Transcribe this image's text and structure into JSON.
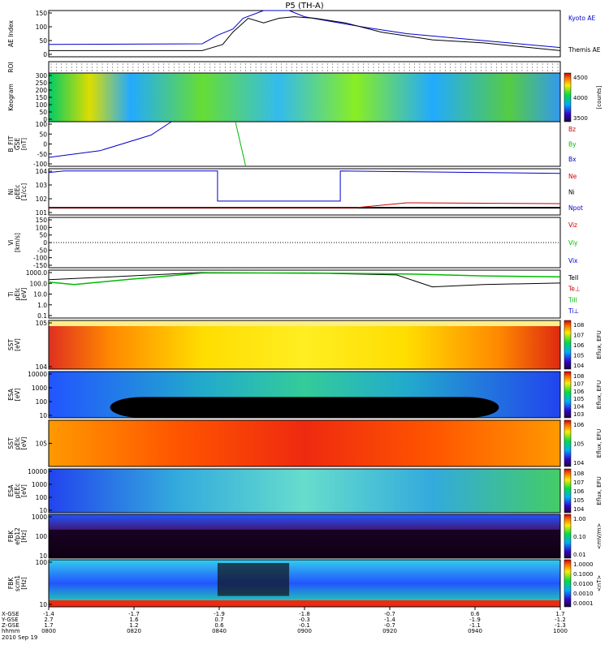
{
  "title": "P5 (TH-A)",
  "colors": {
    "axis": "#000000",
    "red": "#cc0000",
    "green": "#00bb00",
    "blue": "#0000cc",
    "kyoto_ae": "#0000cc"
  },
  "chart_data": [
    {
      "type": "line",
      "id": "ae",
      "ylabel": "AE Index",
      "yticks": [
        "150",
        "100",
        "50",
        "0"
      ],
      "ylim": [
        0,
        150
      ],
      "x": [
        "0800",
        "0820",
        "0840",
        "0900",
        "0920",
        "0940",
        "1000"
      ],
      "series": [
        {
          "name": "Kyoto AE",
          "color": "#0000cc",
          "points": [
            [
              0,
              40
            ],
            [
              0.3,
              42
            ],
            [
              0.33,
              70
            ],
            [
              0.36,
              90
            ],
            [
              0.38,
              125
            ],
            [
              0.42,
              150
            ],
            [
              0.47,
              150
            ],
            [
              0.5,
              130
            ],
            [
              0.55,
              115
            ],
            [
              0.62,
              95
            ],
            [
              0.7,
              75
            ],
            [
              0.8,
              60
            ],
            [
              0.9,
              45
            ],
            [
              1,
              30
            ]
          ]
        },
        {
          "name": "Themis AE",
          "color": "#000000",
          "points": [
            [
              0,
              20
            ],
            [
              0.3,
              20
            ],
            [
              0.34,
              40
            ],
            [
              0.36,
              80
            ],
            [
              0.39,
              125
            ],
            [
              0.42,
              110
            ],
            [
              0.45,
              125
            ],
            [
              0.48,
              130
            ],
            [
              0.52,
              125
            ],
            [
              0.58,
              110
            ],
            [
              0.65,
              80
            ],
            [
              0.75,
              55
            ],
            [
              0.85,
              45
            ],
            [
              1,
              20
            ]
          ]
        }
      ]
    },
    {
      "type": "scatter",
      "id": "roi",
      "ylabel": "ROI"
    },
    {
      "type": "heatmap",
      "id": "keogram",
      "ylabel": "Keogram",
      "yticks": [
        "300",
        "250",
        "200",
        "150",
        "100",
        "50",
        "0"
      ],
      "colorbar": {
        "ticks": [
          "4500",
          "4000",
          "3500"
        ],
        "label": "[counts]"
      }
    },
    {
      "type": "line",
      "id": "bfit",
      "ylabel": "B_FIT",
      "ylabel2": "GSE",
      "ylabel3": "[nT]",
      "yticks": [
        "100",
        "50",
        "0",
        "-50",
        "-100"
      ],
      "ylim": [
        -100,
        100
      ],
      "series": [
        {
          "name": "Bz",
          "color": "#cc0000",
          "points": []
        },
        {
          "name": "By",
          "color": "#00bb00",
          "points": [
            [
              0.365,
              100
            ],
            [
              0.385,
              -100
            ]
          ]
        },
        {
          "name": "Bx",
          "color": "#0000cc",
          "points": [
            [
              0,
              -60
            ],
            [
              0.1,
              -30
            ],
            [
              0.2,
              40
            ],
            [
              0.24,
              100
            ]
          ]
        }
      ]
    },
    {
      "type": "line",
      "id": "ni",
      "ylabel": "Ni",
      "ylabel2": "pEEc",
      "ylabel3": "[1/cc]",
      "yticks": [
        "10^4",
        "10^3",
        "10^2",
        "10^1"
      ],
      "series": [
        {
          "name": "Ne",
          "color": "#cc0000"
        },
        {
          "name": "Ni",
          "color": "#000000"
        },
        {
          "name": "Npot",
          "color": "#0000cc"
        }
      ]
    },
    {
      "type": "line",
      "id": "vi",
      "ylabel": "Vi",
      "ylabel2": "[km/s]",
      "yticks": [
        "150",
        "100",
        "50",
        "0",
        "-50",
        "-100",
        "-150"
      ],
      "ylim": [
        -150,
        150
      ],
      "series": [
        {
          "name": "Viz",
          "color": "#cc0000"
        },
        {
          "name": "Viy",
          "color": "#00bb00"
        },
        {
          "name": "Vix",
          "color": "#0000cc"
        }
      ]
    },
    {
      "type": "line",
      "id": "ti",
      "ylabel": "Ti",
      "ylabel2": "pEIc",
      "ylabel3": "[eV]",
      "yticks": [
        "1000.0",
        "100.0",
        "10.0",
        "1.0",
        "0.1"
      ],
      "series": [
        {
          "name": "TeII",
          "color": "#000000"
        },
        {
          "name": "Te⊥",
          "color": "#cc0000"
        },
        {
          "name": "TiII",
          "color": "#00bb00"
        },
        {
          "name": "Ti⊥",
          "color": "#0000cc"
        }
      ]
    },
    {
      "type": "heatmap",
      "id": "sst1",
      "ylabel": "SST",
      "ylabel2": "[eV]",
      "yticks": [
        "10^5",
        "10^4"
      ],
      "colorbar": {
        "ticks": [
          "10^8",
          "10^7",
          "10^6",
          "10^5",
          "10^4"
        ],
        "label": "Eflux, EFU"
      }
    },
    {
      "type": "heatmap",
      "id": "esa1",
      "ylabel": "ESA",
      "ylabel2": "[eV]",
      "yticks": [
        "10000",
        "1000",
        "100",
        "10"
      ],
      "colorbar": {
        "ticks": [
          "10^8",
          "10^7",
          "10^6",
          "10^5",
          "10^4",
          "10^3"
        ],
        "label": "Eflux, EFU"
      }
    },
    {
      "type": "heatmap",
      "id": "sst2",
      "ylabel": "SST",
      "ylabel2": "pEIc",
      "ylabel3": "[eV]",
      "yticks": [
        "10^5"
      ],
      "colorbar": {
        "ticks": [
          "10^6",
          "10^5",
          "10^4"
        ],
        "label": "Eflux, EFU"
      }
    },
    {
      "type": "heatmap",
      "id": "esa2",
      "ylabel": "ESA",
      "ylabel2": "pEEc",
      "ylabel3": "[eV]",
      "yticks": [
        "10000",
        "1000",
        "100",
        "10"
      ],
      "colorbar": {
        "ticks": [
          "10^8",
          "10^7",
          "10^6",
          "10^5",
          "10^4"
        ],
        "label": "Eflux, EFU"
      }
    },
    {
      "type": "heatmap",
      "id": "fbk1",
      "ylabel": "FBK",
      "ylabel2": "efp12",
      "ylabel3": "[Hz]",
      "yticks": [
        "1000",
        "100",
        "10"
      ],
      "colorbar": {
        "ticks": [
          "1.00",
          "0.10",
          "0.01"
        ],
        "label": "<mV/m>"
      }
    },
    {
      "type": "heatmap",
      "id": "fbk2",
      "ylabel": "FBK",
      "ylabel2": "scm1",
      "ylabel3": "[Hz]",
      "yticks": [
        "100",
        "10"
      ],
      "colorbar": {
        "ticks": [
          "1.0000",
          "0.1000",
          "0.0100",
          "0.0010",
          "0.0001"
        ],
        "label": "<nT>"
      }
    }
  ],
  "xaxis": {
    "row_labels": [
      "X-GSE",
      "Y-GSE",
      "Z-GSE",
      "hhmm",
      "2010 Sep 19"
    ],
    "ticks": [
      {
        "x": "-1.4",
        "y": "2.7",
        "z": "1.7",
        "t": "0800"
      },
      {
        "x": "-1.7",
        "y": "1.6",
        "z": "1.2",
        "t": "0820"
      },
      {
        "x": "-1.9",
        "y": "0.7",
        "z": "0.6",
        "t": "0840"
      },
      {
        "x": "-1.8",
        "y": "-0.3",
        "z": "-0.1",
        "t": "0900"
      },
      {
        "x": "-0.7",
        "y": "-1.4",
        "z": "-0.7",
        "t": "0920"
      },
      {
        "x": "0.6",
        "y": "-1.9",
        "z": "-1.1",
        "t": "0940"
      },
      {
        "x": "1.7",
        "y": "-1.2",
        "z": "-1.3",
        "t": "1000"
      }
    ]
  }
}
